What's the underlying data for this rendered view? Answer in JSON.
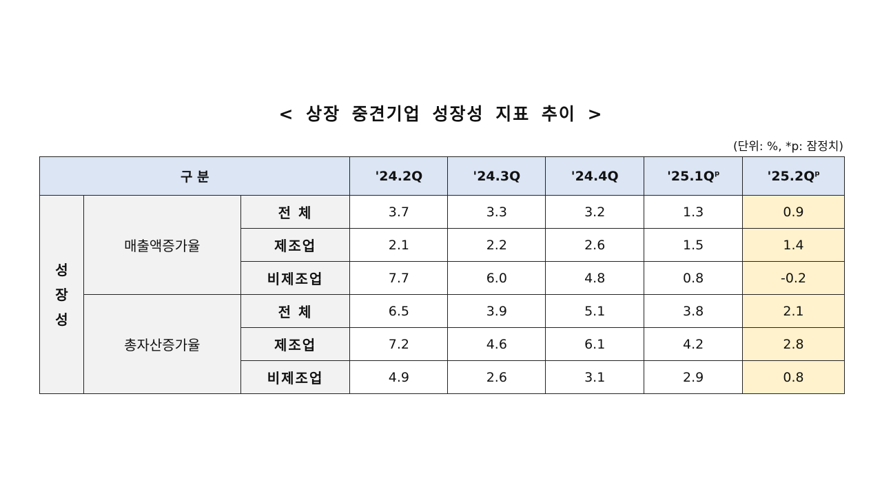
{
  "title": "< 상장 중견기업 성장성 지표 추이 >",
  "unit_note": "(단위: %, *p: 잠정치)",
  "header": {
    "category": "구 분",
    "columns": [
      {
        "label": "'24.2Q",
        "sup": ""
      },
      {
        "label": "'24.3Q",
        "sup": ""
      },
      {
        "label": "'24.4Q",
        "sup": ""
      },
      {
        "label": "'25.1Q",
        "sup": "p"
      },
      {
        "label": "'25.2Q",
        "sup": "p"
      }
    ]
  },
  "highlight_color": "#fff2cc",
  "group": "성\n장\n성",
  "sections": [
    {
      "name": "매출액증가율",
      "rows": [
        {
          "label": "전 체",
          "values": [
            "3.7",
            "3.3",
            "3.2",
            "1.3",
            "0.9"
          ]
        },
        {
          "label": "제조업",
          "values": [
            "2.1",
            "2.2",
            "2.6",
            "1.5",
            "1.4"
          ]
        },
        {
          "label": "비제조업",
          "values": [
            "7.7",
            "6.0",
            "4.8",
            "0.8",
            "-0.2"
          ]
        }
      ]
    },
    {
      "name": "총자산증가율",
      "rows": [
        {
          "label": "전 체",
          "values": [
            "6.5",
            "3.9",
            "5.1",
            "3.8",
            "2.1"
          ]
        },
        {
          "label": "제조업",
          "values": [
            "7.2",
            "4.6",
            "6.1",
            "4.2",
            "2.8"
          ]
        },
        {
          "label": "비제조업",
          "values": [
            "4.9",
            "2.6",
            "3.1",
            "2.9",
            "0.8"
          ]
        }
      ]
    }
  ]
}
